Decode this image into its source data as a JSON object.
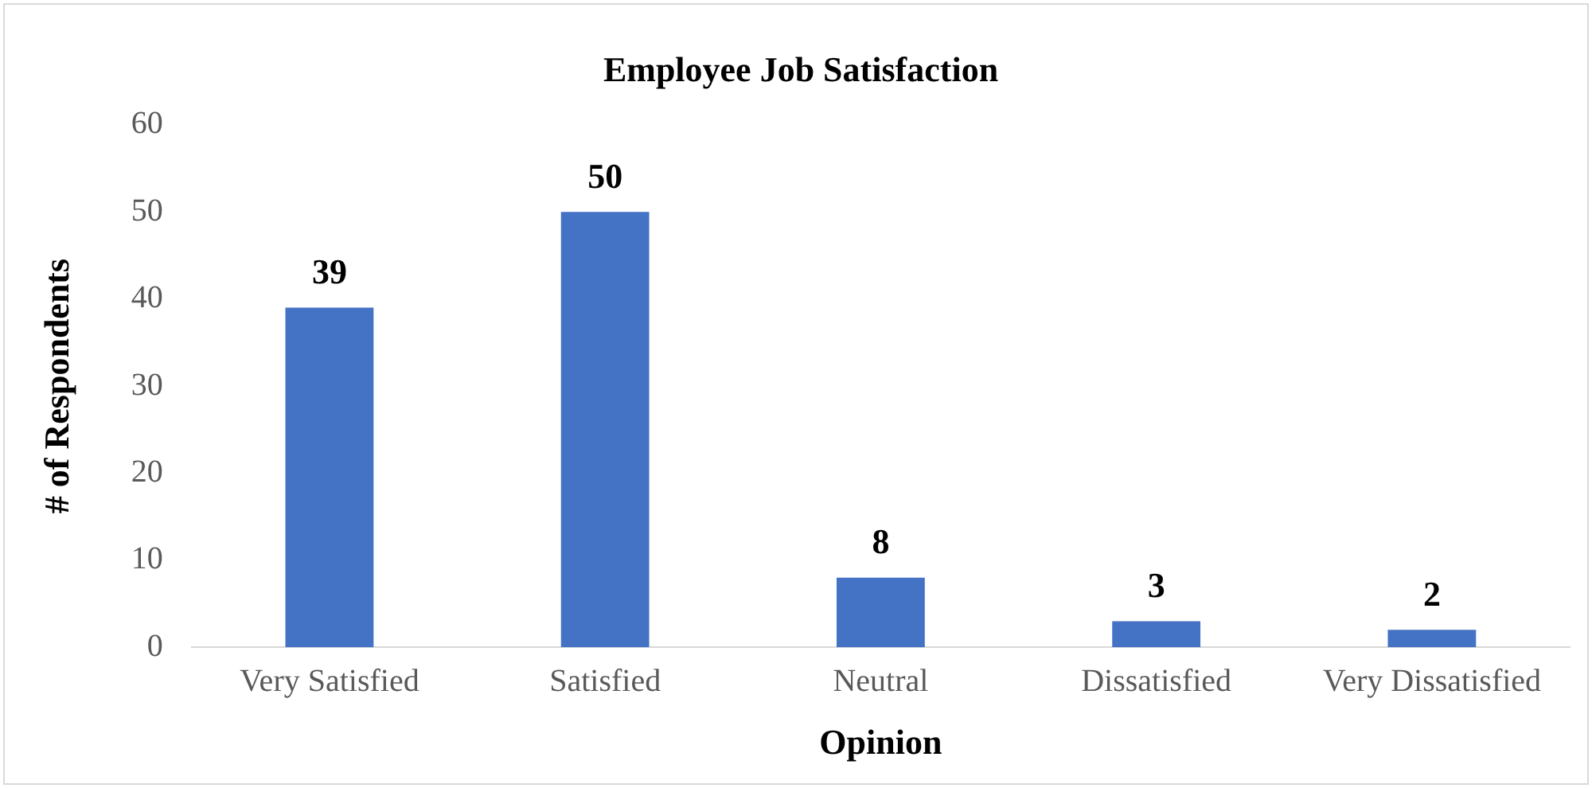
{
  "chart_data": {
    "type": "bar",
    "title": "Employee Job Satisfaction",
    "xlabel": "Opinion",
    "ylabel": "# of Respondents",
    "categories": [
      "Very Satisfied",
      "Satisfied",
      "Neutral",
      "Dissatisfied",
      "Very Dissatisfied"
    ],
    "values": [
      39,
      50,
      8,
      3,
      2
    ],
    "color": "#4472c4",
    "ylim": [
      0,
      60
    ],
    "yticks": [
      0,
      10,
      20,
      30,
      40,
      50,
      60
    ],
    "grid": false,
    "legend": false,
    "data_labels": true
  }
}
